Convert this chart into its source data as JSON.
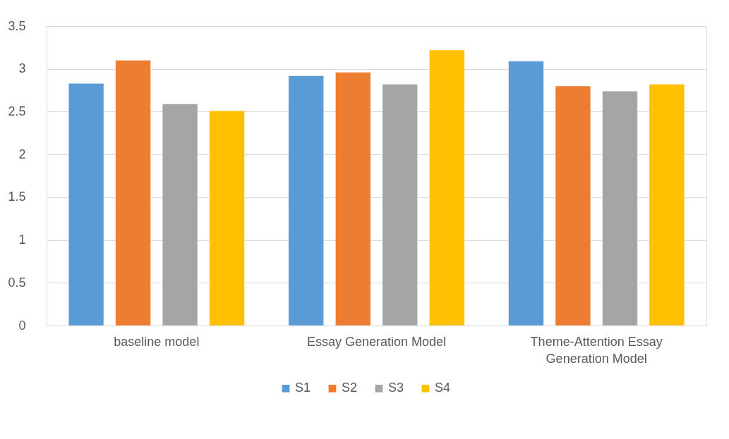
{
  "chart_data": {
    "type": "bar",
    "categories": [
      "baseline model",
      "Essay Generation Model",
      "Theme-Attention Essay Generation Model"
    ],
    "series": [
      {
        "name": "S1",
        "color": "#5b9bd5",
        "values": [
          2.83,
          2.92,
          3.09
        ]
      },
      {
        "name": "S2",
        "color": "#ed7d31",
        "values": [
          3.1,
          2.96,
          2.8
        ]
      },
      {
        "name": "S3",
        "color": "#a5a5a5",
        "values": [
          2.59,
          2.82,
          2.74
        ]
      },
      {
        "name": "S4",
        "color": "#ffc000",
        "values": [
          2.51,
          3.22,
          2.82
        ]
      }
    ],
    "ylim": [
      0,
      3.5
    ],
    "yticks": [
      0,
      0.5,
      1,
      1.5,
      2,
      2.5,
      3,
      3.5
    ],
    "grid": "y",
    "legend": "bottom"
  }
}
